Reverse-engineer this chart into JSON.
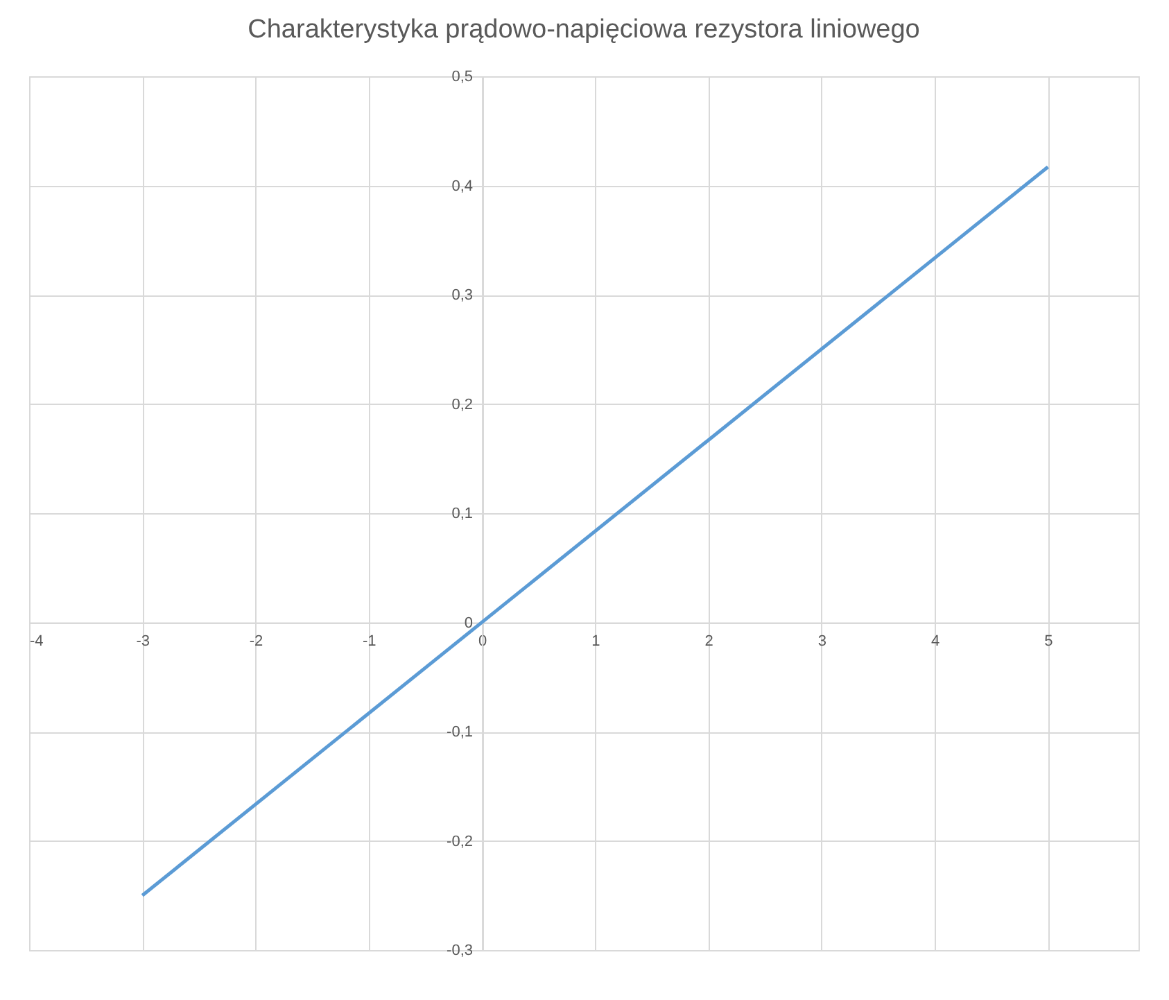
{
  "chart_data": {
    "type": "line",
    "title": "Charakterystyka prądowo-napięciowa rezystora liniowego",
    "x": [
      -3,
      5
    ],
    "series": [
      {
        "color": "#5b9bd5",
        "values": [
          -0.25,
          0.417
        ]
      }
    ],
    "xlim": [
      -4,
      5.8
    ],
    "xticks": [
      -4,
      -3,
      -2,
      -1,
      0,
      1,
      2,
      3,
      4,
      5
    ],
    "ylim": [
      -0.3,
      0.5
    ],
    "yticks": [
      {
        "value": -0.3,
        "label": "-0,3"
      },
      {
        "value": -0.2,
        "label": "-0,2"
      },
      {
        "value": -0.1,
        "label": "-0,1"
      },
      {
        "value": 0,
        "label": "0"
      },
      {
        "value": 0.1,
        "label": "0,1"
      },
      {
        "value": 0.2,
        "label": "0,2"
      },
      {
        "value": 0.3,
        "label": "0,3"
      },
      {
        "value": 0.4,
        "label": "0,4"
      },
      {
        "value": 0.5,
        "label": "0,5"
      }
    ],
    "grid": true,
    "marker": "none",
    "line_style": "solid"
  }
}
